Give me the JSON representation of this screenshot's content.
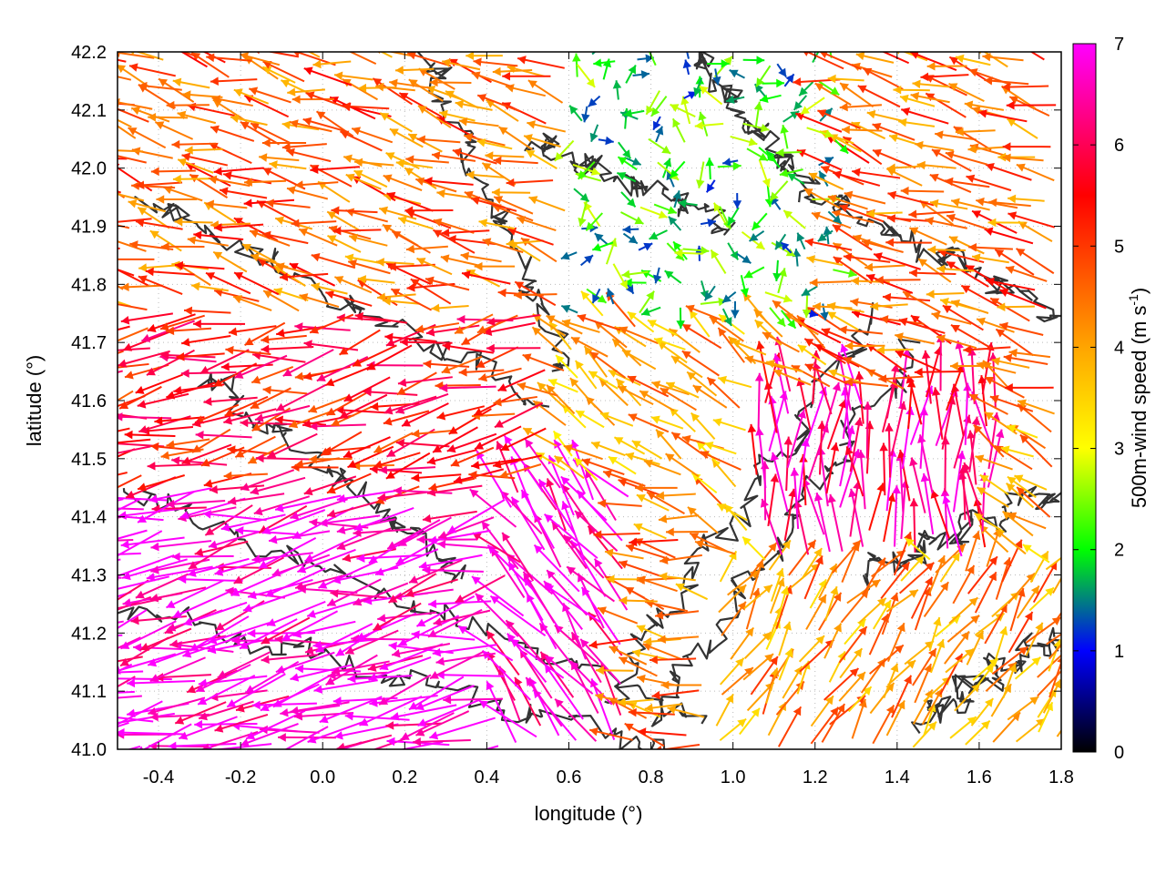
{
  "chart_data": {
    "type": "vector-field",
    "xlabel": "longitude (°)",
    "ylabel": "latitude (°)",
    "colorbar_label": "500m-wind speed (m s-1)",
    "colorbar_label_main": "500m-wind speed (m s",
    "colorbar_label_sup": "-1",
    "colorbar_label_end": ")",
    "xlim": [
      -0.5,
      1.8
    ],
    "ylim": [
      41.0,
      42.2
    ],
    "xticks": [
      "-0.4",
      "-0.2",
      "0.0",
      "0.2",
      "0.4",
      "0.6",
      "0.8",
      "1.0",
      "1.2",
      "1.4",
      "1.6",
      "1.8"
    ],
    "xtick_values": [
      -0.4,
      -0.2,
      0.0,
      0.2,
      0.4,
      0.6,
      0.8,
      1.0,
      1.2,
      1.4,
      1.6,
      1.8
    ],
    "yticks": [
      "41.0",
      "41.1",
      "41.2",
      "41.3",
      "41.4",
      "41.5",
      "41.6",
      "41.7",
      "41.8",
      "41.9",
      "42.0",
      "42.1",
      "42.2"
    ],
    "ytick_values": [
      41.0,
      41.1,
      41.2,
      41.3,
      41.4,
      41.5,
      41.6,
      41.7,
      41.8,
      41.9,
      42.0,
      42.1,
      42.2
    ],
    "colorbar": {
      "range": [
        0,
        7
      ],
      "ticks": [
        "0",
        "1",
        "2",
        "3",
        "4",
        "5",
        "6",
        "7"
      ],
      "tick_values": [
        0,
        1,
        2,
        3,
        4,
        5,
        6,
        7
      ],
      "colors": [
        "#000000",
        "#0000ff",
        "#00ff00",
        "#ffff00",
        "#ffa500",
        "#ff0000",
        "#ff00ff"
      ],
      "color_stops": [
        0,
        1,
        2,
        3,
        4,
        5.5,
        7
      ]
    },
    "grid": "dotted",
    "wind_regions": [
      {
        "region": "south-west (lon -0.5–0.7, lat 41.0–41.45)",
        "speed_ms": 7,
        "direction": "westward, slightly up"
      },
      {
        "region": "west (lon -0.5–0.5, lat 41.45–41.8)",
        "speed_ms": 5.5,
        "direction": "westward"
      },
      {
        "region": "north-west (lon -0.5–0.6, lat 41.8–42.2)",
        "speed_ms": 4.5,
        "direction": "west-north-west"
      },
      {
        "region": "north-central (lon 0.6–1.2, lat 41.75–42.2)",
        "speed_ms": 2,
        "direction": "variable, weak"
      },
      {
        "region": "east-central (lon 1.1–1.6, lat 41.35–41.6)",
        "speed_ms": 6.5,
        "direction": "northward"
      },
      {
        "region": "south-east (lon 1.0–1.8, lat 41.0–41.3)",
        "speed_ms": 4,
        "direction": "north-east"
      },
      {
        "region": "north-east (lon 1.3–1.8, lat 41.7–42.2)",
        "speed_ms": 4.5,
        "direction": "west-north-west"
      }
    ],
    "contours": "terrain height isolines (dark grey)"
  }
}
